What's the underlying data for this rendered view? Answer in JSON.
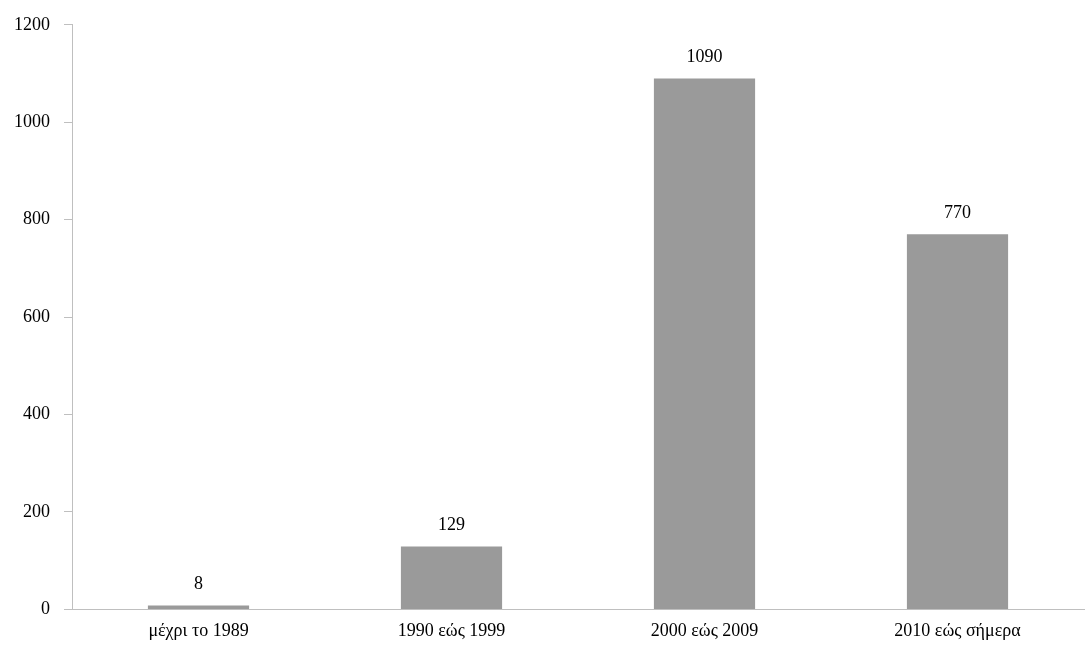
{
  "chart_data": {
    "type": "bar",
    "categories": [
      "μέχρι το 1989",
      "1990 εώς 1999",
      "2000 εώς 2009",
      "2010 εώς σήμερα"
    ],
    "values": [
      8,
      129,
      1090,
      770
    ],
    "color": "#9a9a9a",
    "ylim": [
      0,
      1200
    ],
    "yticks": [
      0,
      200,
      400,
      600,
      800,
      1000,
      1200
    ],
    "grid": false,
    "legend": false,
    "data_labels": true
  }
}
